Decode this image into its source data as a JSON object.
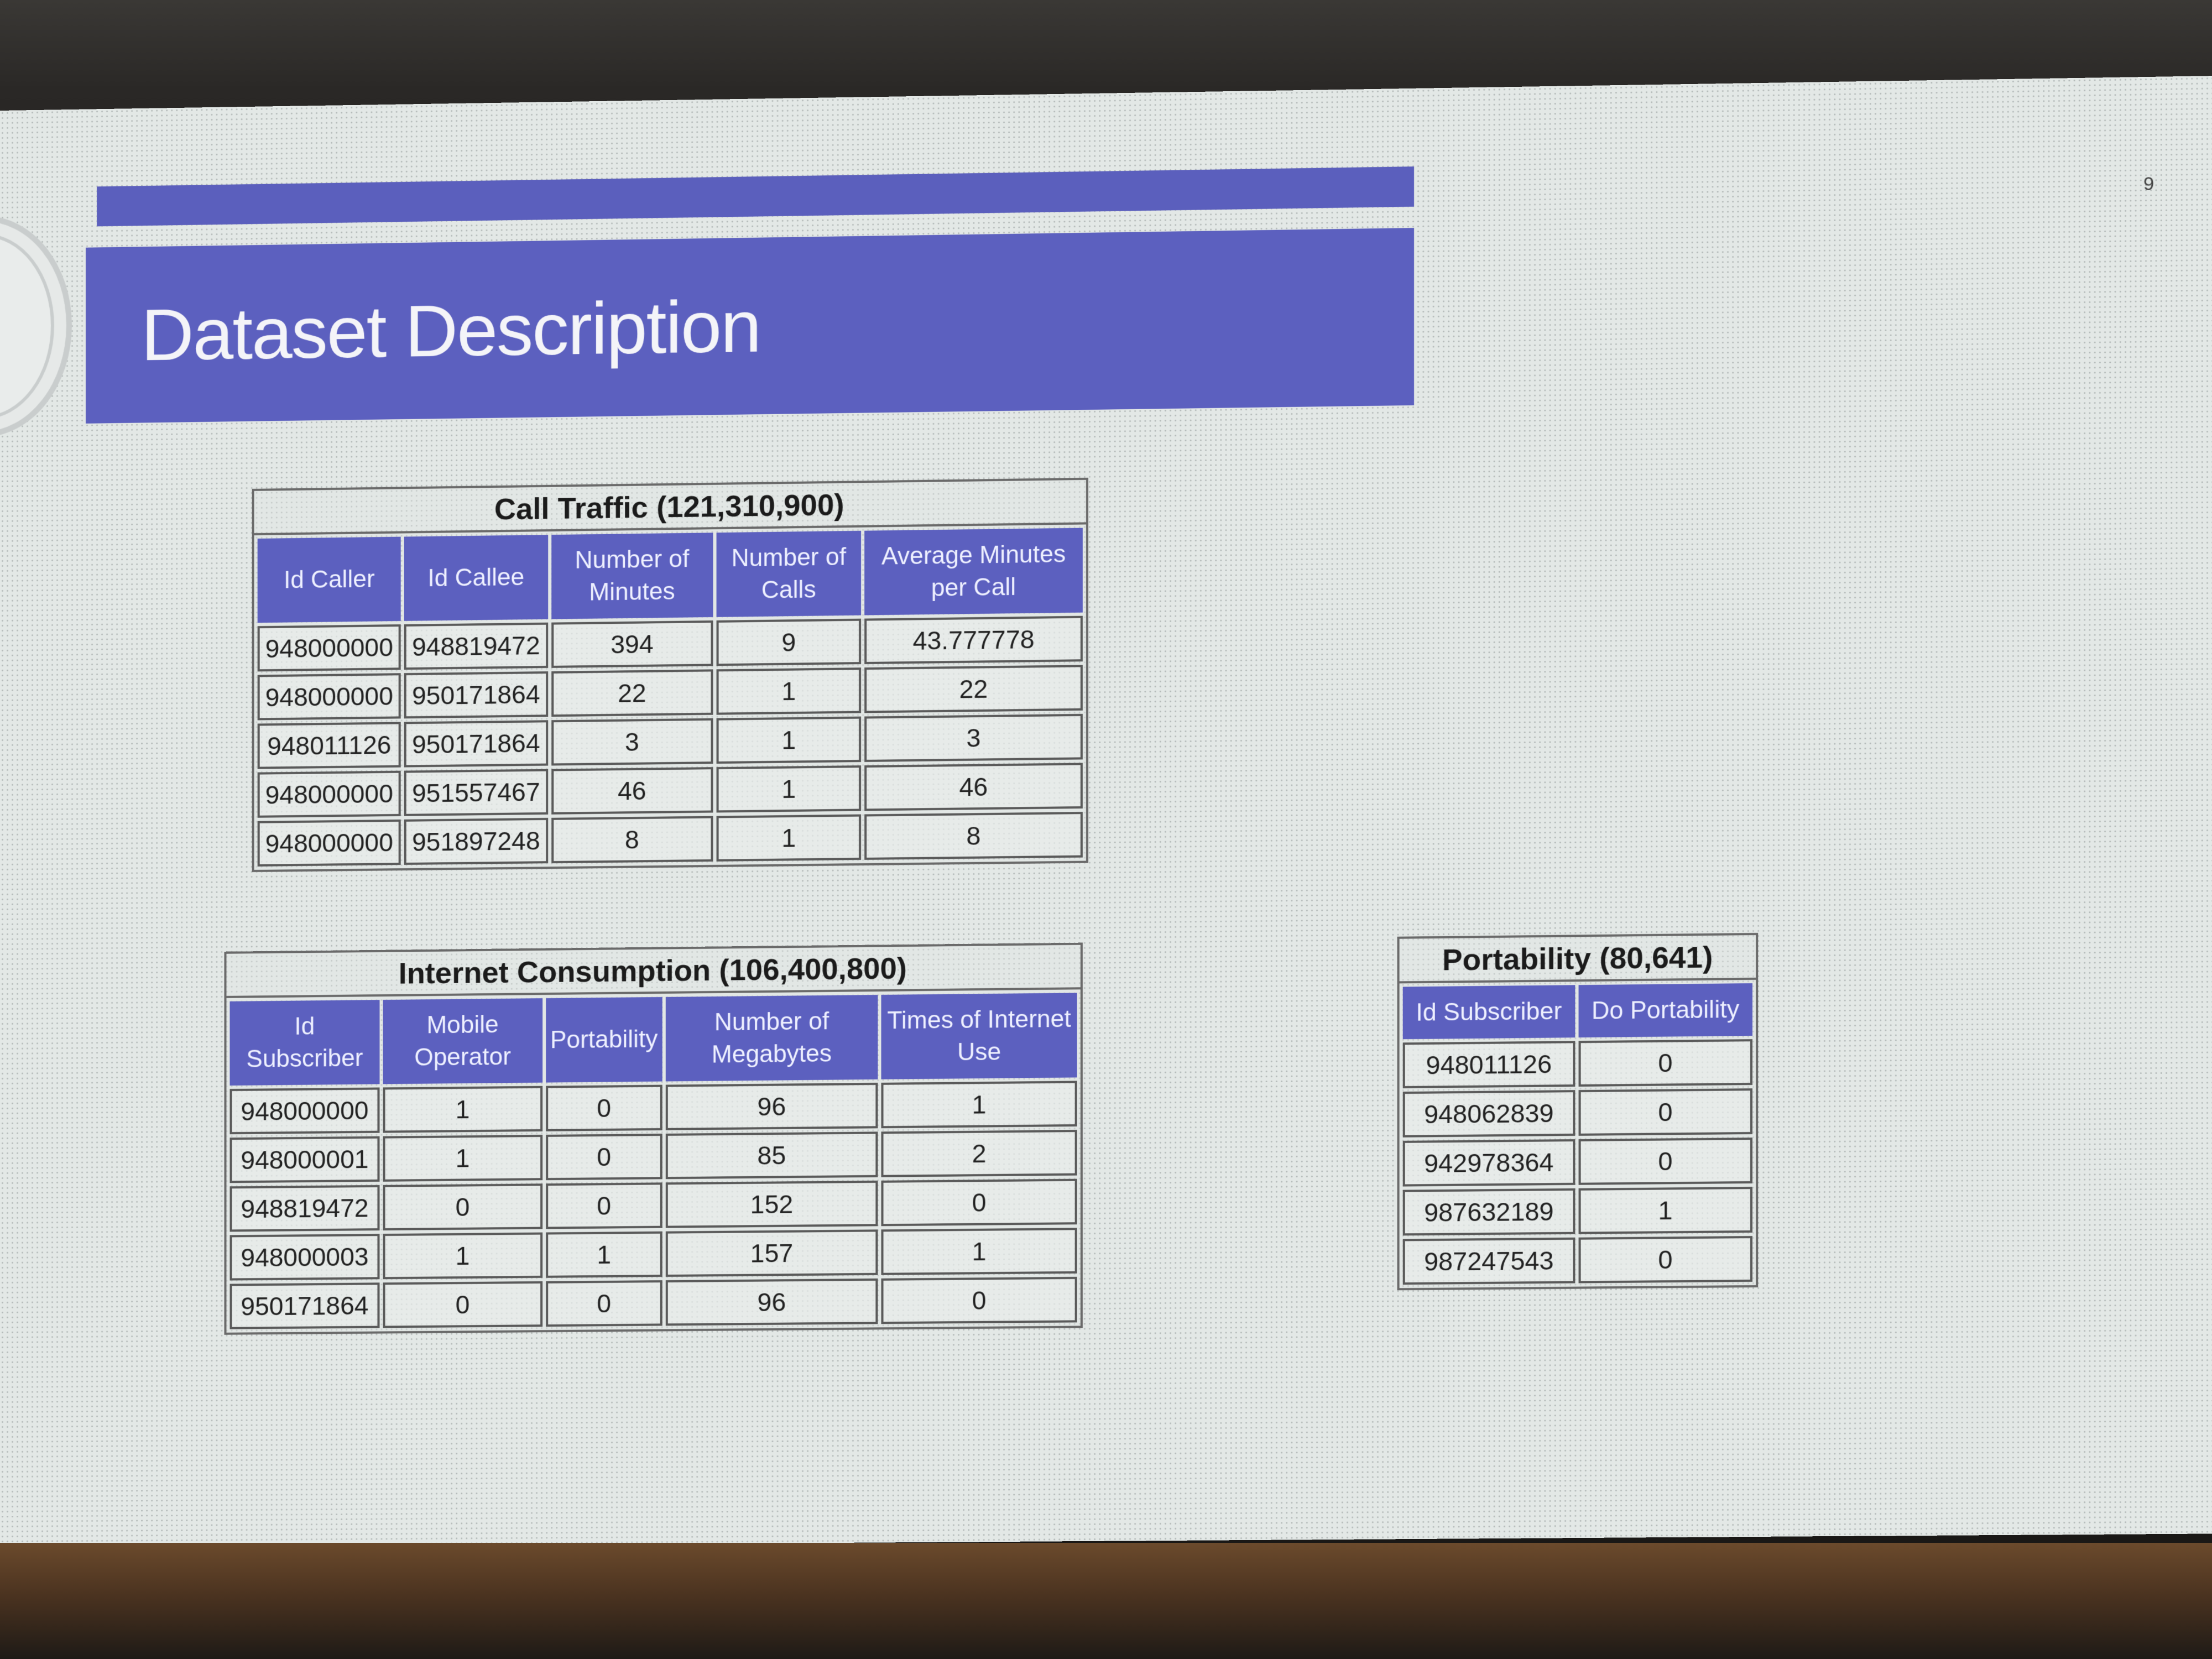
{
  "slide": {
    "title": "Dataset Description",
    "page_mark": "9"
  },
  "call_traffic": {
    "caption": "Call Traffic (121,310,900)",
    "headers": [
      "Id Caller",
      "Id Callee",
      "Number of Minutes",
      "Number of Calls",
      "Average Minutes per Call"
    ],
    "rows": [
      [
        "948000000",
        "948819472",
        "394",
        "9",
        "43.777778"
      ],
      [
        "948000000",
        "950171864",
        "22",
        "1",
        "22"
      ],
      [
        "948011126",
        "950171864",
        "3",
        "1",
        "3"
      ],
      [
        "948000000",
        "951557467",
        "46",
        "1",
        "46"
      ],
      [
        "948000000",
        "951897248",
        "8",
        "1",
        "8"
      ]
    ]
  },
  "internet_consumption": {
    "caption": "Internet Consumption (106,400,800)",
    "headers": [
      "Id Subscriber",
      "Mobile Operator",
      "Portability",
      "Number of Megabytes",
      "Times of Internet Use"
    ],
    "rows": [
      [
        "948000000",
        "1",
        "0",
        "96",
        "1"
      ],
      [
        "948000001",
        "1",
        "0",
        "85",
        "2"
      ],
      [
        "948819472",
        "0",
        "0",
        "152",
        "0"
      ],
      [
        "948000003",
        "1",
        "1",
        "157",
        "1"
      ],
      [
        "950171864",
        "0",
        "0",
        "96",
        "0"
      ]
    ]
  },
  "portability": {
    "caption": "Portability (80,641)",
    "headers": [
      "Id Subscriber",
      "Do Portability"
    ],
    "rows": [
      [
        "948011126",
        "0"
      ],
      [
        "948062839",
        "0"
      ],
      [
        "942978364",
        "0"
      ],
      [
        "987632189",
        "1"
      ],
      [
        "987247543",
        "0"
      ]
    ]
  },
  "colors": {
    "accent": "#5c60bf",
    "screen": "#e3e8e6"
  }
}
